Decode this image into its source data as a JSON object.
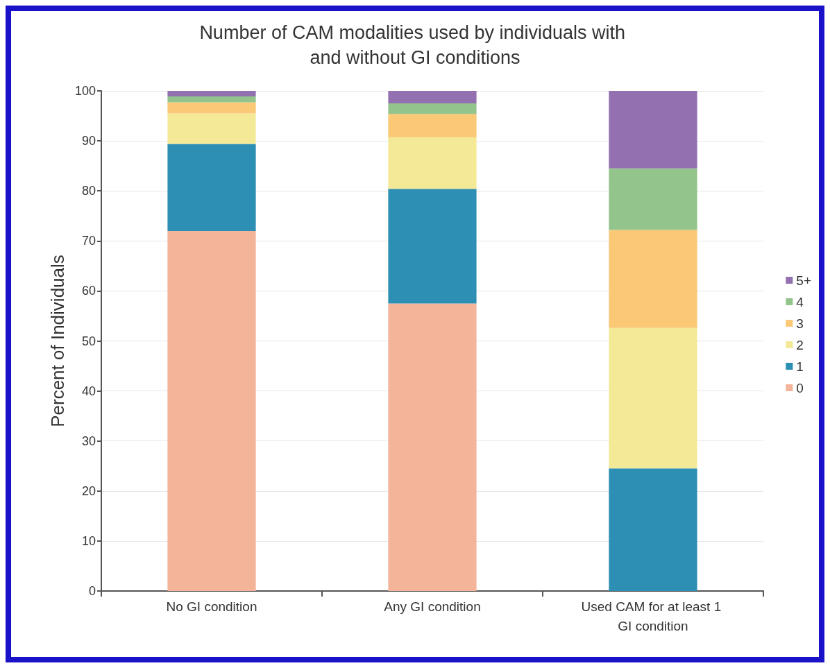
{
  "chart_data": {
    "type": "bar",
    "title": "Number of CAM modalities used by individuals with and without GI conditions",
    "ylabel": "Percent of Individuals",
    "categories": [
      "No GI condition",
      "Any GI condition",
      "Used CAM for at least 1 GI condition"
    ],
    "stacked": true,
    "ylim": [
      0,
      100
    ],
    "yticks": [
      0,
      10,
      20,
      30,
      40,
      50,
      60,
      70,
      80,
      90,
      100
    ],
    "grid": "y",
    "legend": "right",
    "series": [
      {
        "name": "0",
        "color": "#f4b49a",
        "values": [
          72,
          57.5,
          0
        ]
      },
      {
        "name": "1",
        "color": "#2c8fb3",
        "values": [
          17.4,
          22.9,
          24.5
        ]
      },
      {
        "name": "2",
        "color": "#f3e996",
        "values": [
          6.1,
          10.3,
          28.1
        ]
      },
      {
        "name": "3",
        "color": "#fbc875",
        "values": [
          2.2,
          4.7,
          19.6
        ]
      },
      {
        "name": "4",
        "color": "#93c48b",
        "values": [
          1.2,
          2.1,
          12.3
        ]
      },
      {
        "name": "5+",
        "color": "#9370b0",
        "values": [
          1.1,
          2.5,
          15.5
        ]
      }
    ]
  }
}
